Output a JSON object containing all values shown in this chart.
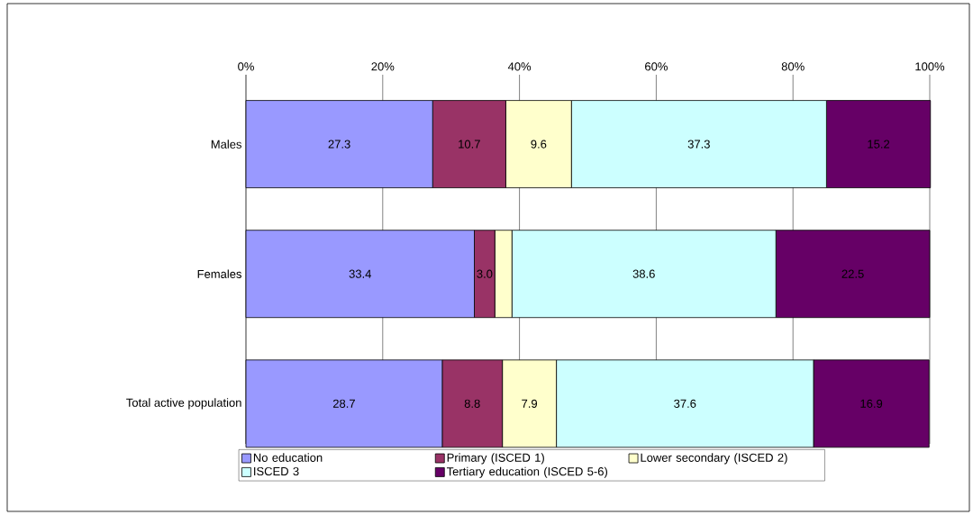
{
  "chart_data": {
    "type": "bar",
    "orientation": "horizontal",
    "stacked": true,
    "categories": [
      "Males",
      "Females",
      "Total active population"
    ],
    "series": [
      {
        "name": "No education",
        "color": "#9999ff",
        "values": [
          27.3,
          33.4,
          28.7
        ],
        "value_labels": [
          "27.3",
          "33.4",
          "28.7"
        ]
      },
      {
        "name": "Primary (ISCED 1)",
        "color": "#993366",
        "values": [
          10.7,
          3.0,
          8.8
        ],
        "value_labels": [
          "10.7",
          "3.0",
          "8.8"
        ]
      },
      {
        "name": "Lower secondary (ISCED 2)",
        "color": "#ffffcc",
        "values": [
          9.6,
          2.5,
          7.9
        ],
        "value_labels": [
          "9.6",
          null,
          "7.9"
        ]
      },
      {
        "name": "ISCED 3",
        "color": "#ccffff",
        "values": [
          37.3,
          38.6,
          37.6
        ],
        "value_labels": [
          "37.3",
          "38.6",
          "37.6"
        ]
      },
      {
        "name": "Tertiary education (ISCED 5-6)",
        "color": "#660066",
        "values": [
          15.2,
          22.5,
          16.9
        ],
        "value_labels": [
          "15.2",
          "22.5",
          "16.9"
        ]
      }
    ],
    "xlim": [
      0,
      100
    ],
    "xticks": [
      {
        "value": 0,
        "label": "0%"
      },
      {
        "value": 20,
        "label": "20%"
      },
      {
        "value": 40,
        "label": "40%"
      },
      {
        "value": 60,
        "label": "60%"
      },
      {
        "value": 80,
        "label": "80%"
      },
      {
        "value": 100,
        "label": "100%"
      }
    ],
    "grid": "x",
    "legend": "bottom"
  }
}
